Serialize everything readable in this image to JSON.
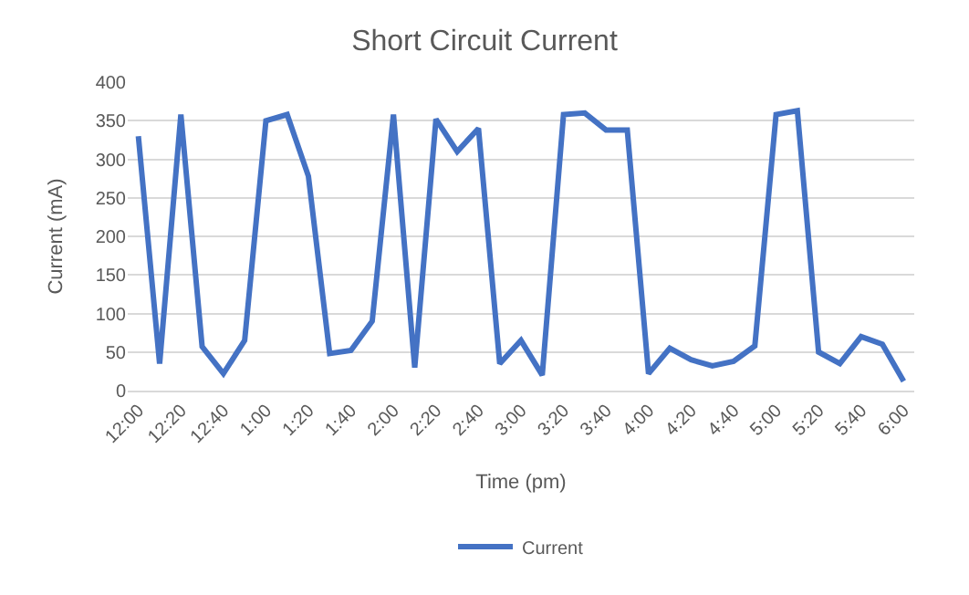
{
  "chart_data": {
    "type": "line",
    "title": "Short Circuit Current",
    "xlabel": "Time (pm)",
    "ylabel": "Current (mA)",
    "categories": [
      "12:00",
      null,
      "12:20",
      null,
      "12:40",
      null,
      "1:00",
      null,
      "1:20",
      null,
      "1:40",
      null,
      "2:00",
      null,
      "2:20",
      null,
      "2:40",
      null,
      "3:00",
      null,
      "3:20",
      null,
      "3:40",
      null,
      "4:00",
      null,
      "4:20",
      null,
      "4:40",
      null,
      "5:00",
      null,
      "5:20",
      null,
      "5:40",
      null,
      "6:00"
    ],
    "series": [
      {
        "name": "Current",
        "color": "#4472c4",
        "values": [
          330,
          35,
          358,
          57,
          22,
          65,
          350,
          358,
          278,
          48,
          52,
          90,
          358,
          30,
          352,
          310,
          340,
          35,
          65,
          20,
          358,
          360,
          338,
          338,
          22,
          55,
          40,
          32,
          38,
          58,
          358,
          363,
          50,
          35,
          70,
          60,
          12
        ]
      }
    ],
    "ylim": [
      0,
      400
    ],
    "yticks": [
      0,
      50,
      100,
      150,
      200,
      250,
      300,
      350,
      400
    ],
    "grid": "y",
    "legend": "bottom",
    "marker": "none",
    "line_style": "solid"
  }
}
